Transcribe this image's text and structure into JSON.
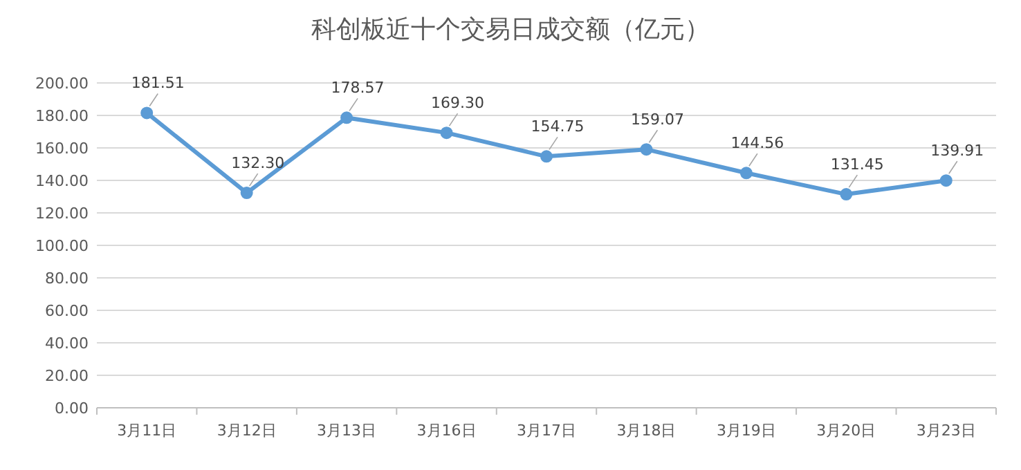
{
  "chart_data": {
    "type": "line",
    "title": "科创板近十个交易日成交额（亿元）",
    "categories": [
      "3月11日",
      "3月12日",
      "3月13日",
      "3月16日",
      "3月17日",
      "3月18日",
      "3月19日",
      "3月20日",
      "3月23日"
    ],
    "series": [
      {
        "color": "#5b9bd5",
        "values": [
          181.51,
          132.3,
          178.57,
          169.3,
          154.75,
          159.07,
          144.56,
          131.45,
          139.91
        ]
      }
    ],
    "ylim": [
      0,
      200
    ],
    "yticks": [
      {
        "value": 0,
        "label": "0.00"
      },
      {
        "value": 20,
        "label": "20.00"
      },
      {
        "value": 40,
        "label": "40.00"
      },
      {
        "value": 60,
        "label": "60.00"
      },
      {
        "value": 80,
        "label": "80.00"
      },
      {
        "value": 100,
        "label": "100.00"
      },
      {
        "value": 120,
        "label": "120.00"
      },
      {
        "value": 140,
        "label": "140.00"
      },
      {
        "value": 160,
        "label": "160.00"
      },
      {
        "value": 180,
        "label": "180.00"
      },
      {
        "value": 200,
        "label": "200.00"
      }
    ],
    "value_labels": [
      "181.51",
      "132.30",
      "178.57",
      "169.30",
      "154.75",
      "159.07",
      "144.56",
      "131.45",
      "139.91"
    ],
    "grid": "y",
    "marker": "circle",
    "line_style": "solid"
  }
}
